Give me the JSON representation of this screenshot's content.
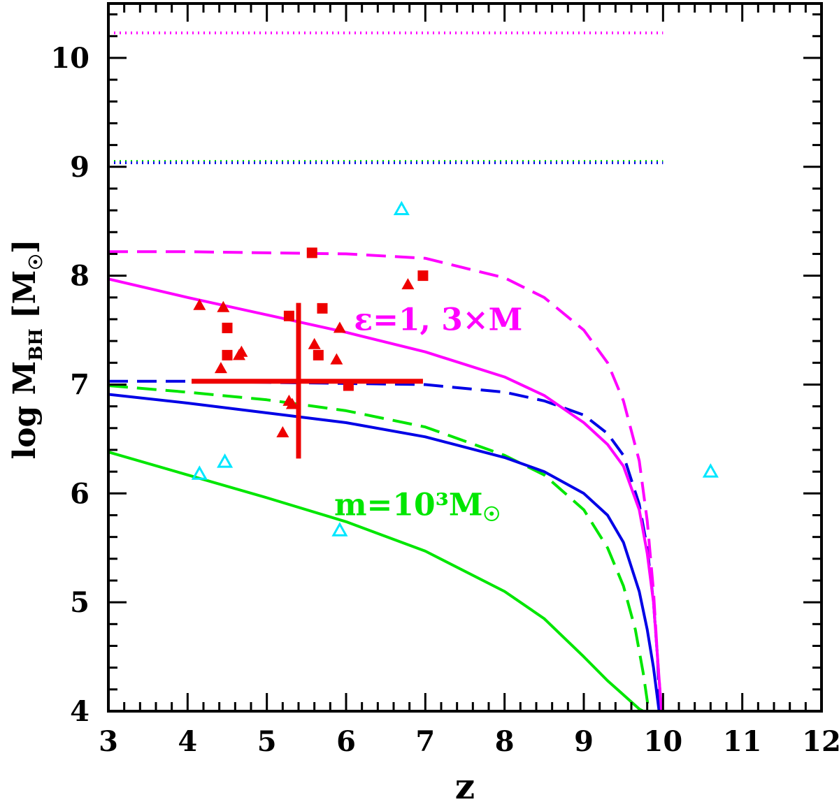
{
  "chart_data": {
    "type": "line",
    "xlabel": "z",
    "ylabel": {
      "main": "log M",
      "sub": "BH",
      "unit": "[M",
      "unit_close": "]"
    },
    "xlim": [
      3,
      12
    ],
    "ylim": [
      4,
      10.5
    ],
    "x_major_ticks": [
      3,
      4,
      5,
      6,
      7,
      8,
      9,
      10,
      11,
      12
    ],
    "y_major_ticks": [
      4,
      5,
      6,
      7,
      8,
      9,
      10
    ],
    "x_tick_labels": [
      "3",
      "4",
      "5",
      "6",
      "7",
      "8",
      "9",
      "10",
      "11",
      "12"
    ],
    "y_tick_labels": [
      "4",
      "5",
      "6",
      "7",
      "8",
      "9",
      "10"
    ],
    "minor_tick_step": {
      "x": 0.2,
      "y": 0.2
    },
    "grid": false,
    "colors": {
      "magenta": "#ff00ff",
      "blue": "#0000e6",
      "green": "#00e600",
      "red": "#ee0000",
      "cyan": "#00e6ff"
    },
    "annotations": [
      {
        "text": "ε=1,  3×M",
        "x": 6.1,
        "y": 7.5,
        "color": "#ff00ff"
      },
      {
        "text": "m=10³M",
        "x": 5.85,
        "y": 5.8,
        "color": "#00e600",
        "sun_symbol": true
      }
    ],
    "series": [
      {
        "style": "solid",
        "color": "#00e600",
        "points": [
          [
            3,
            6.38
          ],
          [
            4,
            6.17
          ],
          [
            5,
            5.96
          ],
          [
            6,
            5.74
          ],
          [
            7,
            5.47
          ],
          [
            8,
            5.1
          ],
          [
            8.5,
            4.85
          ],
          [
            9,
            4.5
          ],
          [
            9.3,
            4.28
          ],
          [
            9.5,
            4.15
          ],
          [
            9.7,
            4.02
          ],
          [
            9.75,
            4.0
          ]
        ]
      },
      {
        "style": "dashed",
        "color": "#00e600",
        "points": [
          [
            3,
            6.99
          ],
          [
            4,
            6.93
          ],
          [
            5,
            6.86
          ],
          [
            6,
            6.76
          ],
          [
            7,
            6.61
          ],
          [
            8,
            6.35
          ],
          [
            8.5,
            6.17
          ],
          [
            9,
            5.85
          ],
          [
            9.3,
            5.5
          ],
          [
            9.5,
            5.15
          ],
          [
            9.65,
            4.75
          ],
          [
            9.75,
            4.35
          ],
          [
            9.82,
            4.0
          ]
        ]
      },
      {
        "style": "solid",
        "color": "#0000e6",
        "points": [
          [
            3,
            6.91
          ],
          [
            4,
            6.83
          ],
          [
            5,
            6.74
          ],
          [
            6,
            6.65
          ],
          [
            7,
            6.52
          ],
          [
            8,
            6.33
          ],
          [
            8.5,
            6.2
          ],
          [
            9,
            6.0
          ],
          [
            9.3,
            5.8
          ],
          [
            9.5,
            5.55
          ],
          [
            9.7,
            5.1
          ],
          [
            9.8,
            4.75
          ],
          [
            9.88,
            4.4
          ],
          [
            9.95,
            4.0
          ]
        ]
      },
      {
        "style": "dashed",
        "color": "#0000e6",
        "points": [
          [
            3,
            7.03
          ],
          [
            4,
            7.03
          ],
          [
            5,
            7.02
          ],
          [
            6,
            7.01
          ],
          [
            7,
            7.0
          ],
          [
            8,
            6.93
          ],
          [
            8.5,
            6.85
          ],
          [
            9,
            6.72
          ],
          [
            9.3,
            6.55
          ],
          [
            9.5,
            6.35
          ],
          [
            9.7,
            5.9
          ],
          [
            9.8,
            5.5
          ],
          [
            9.88,
            5.0
          ],
          [
            9.93,
            4.5
          ],
          [
            9.96,
            4.0
          ]
        ]
      },
      {
        "style": "solid",
        "color": "#ff00ff",
        "points": [
          [
            3,
            7.97
          ],
          [
            4,
            7.8
          ],
          [
            5,
            7.64
          ],
          [
            6,
            7.48
          ],
          [
            7,
            7.3
          ],
          [
            8,
            7.07
          ],
          [
            8.5,
            6.9
          ],
          [
            9,
            6.65
          ],
          [
            9.3,
            6.45
          ],
          [
            9.5,
            6.25
          ],
          [
            9.7,
            5.85
          ],
          [
            9.8,
            5.45
          ],
          [
            9.88,
            5.0
          ],
          [
            9.93,
            4.5
          ],
          [
            9.98,
            4.0
          ]
        ]
      },
      {
        "style": "dashed",
        "color": "#ff00ff",
        "points": [
          [
            3,
            8.22
          ],
          [
            4,
            8.22
          ],
          [
            5,
            8.21
          ],
          [
            6,
            8.2
          ],
          [
            7,
            8.16
          ],
          [
            8,
            7.98
          ],
          [
            8.5,
            7.8
          ],
          [
            9,
            7.5
          ],
          [
            9.3,
            7.2
          ],
          [
            9.5,
            6.85
          ],
          [
            9.7,
            6.3
          ],
          [
            9.8,
            5.75
          ],
          [
            9.88,
            5.1
          ],
          [
            9.93,
            4.5
          ],
          [
            9.98,
            4.0
          ]
        ]
      },
      {
        "style": "dotted",
        "color": "#ff00ff",
        "points": [
          [
            3,
            10.23
          ],
          [
            10,
            10.23
          ]
        ]
      },
      {
        "style": "dotted",
        "color": "#00e600",
        "points": [
          [
            3,
            9.05
          ],
          [
            10,
            9.05
          ]
        ]
      },
      {
        "style": "dotted",
        "color": "#0000e6",
        "points": [
          [
            3,
            9.05
          ],
          [
            10,
            9.05
          ]
        ],
        "offset": 2
      }
    ],
    "markers": {
      "filled_triangles": [
        [
          4.15,
          7.73
        ],
        [
          4.45,
          7.71
        ],
        [
          4.42,
          7.15
        ],
        [
          4.68,
          7.3
        ],
        [
          4.65,
          7.27
        ],
        [
          5.2,
          6.56
        ],
        [
          5.28,
          6.85
        ],
        [
          5.32,
          6.82
        ],
        [
          5.6,
          7.37
        ],
        [
          5.92,
          7.52
        ],
        [
          5.88,
          7.23
        ],
        [
          6.78,
          7.92
        ]
      ],
      "filled_squares": [
        [
          4.5,
          7.52
        ],
        [
          4.5,
          7.27
        ],
        [
          5.28,
          7.63
        ],
        [
          5.57,
          8.21
        ],
        [
          5.65,
          7.27
        ],
        [
          5.7,
          7.7
        ],
        [
          6.03,
          6.99
        ],
        [
          6.97,
          8.0
        ]
      ],
      "open_triangles": [
        [
          4.15,
          6.18
        ],
        [
          4.47,
          6.29
        ],
        [
          5.92,
          5.66
        ],
        [
          6.7,
          8.61
        ],
        [
          10.6,
          6.2
        ]
      ]
    },
    "error_cross": {
      "x": 5.4,
      "y": 7.03,
      "xerr": [
        4.05,
        6.97
      ],
      "yerr": [
        6.32,
        7.75
      ],
      "color": "#ee0000"
    }
  }
}
